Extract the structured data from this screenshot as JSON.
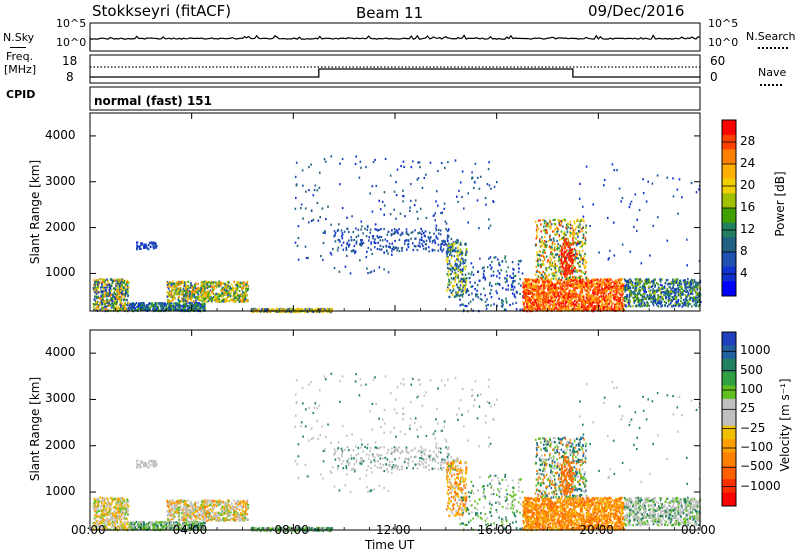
{
  "header": {
    "title": "Stokkseyri (fitACF)",
    "beam": "Beam 11",
    "date": "09/Dec/2016"
  },
  "top_panels": {
    "nsky_label": "N.Sky",
    "nsky_ticks": [
      "10^5",
      "10^0"
    ],
    "nsky_right_ticks": [
      "10^5",
      "10^0"
    ],
    "nsearch_label": "N.Search",
    "freq_label": "Freq.",
    "freq_unit": "[MHz]",
    "freq_ticks": [
      "18",
      "8"
    ],
    "nave_ticks": [
      "60",
      "0"
    ],
    "nave_label": "Nave",
    "cpid_label": "CPID",
    "cpid_value": "normal (fast) 151"
  },
  "chart_data": [
    {
      "type": "heatmap",
      "name": "power",
      "ylabel": "Slant Range [km]",
      "ylim": [
        180,
        4500
      ],
      "yticks": [
        1000,
        2000,
        3000,
        4000
      ],
      "colorbar_label": "Power [dB]",
      "colorbar_ticks": [
        "28",
        "24",
        "20",
        "16",
        "12",
        "8",
        "4"
      ],
      "colorbar_colors": [
        "#ff0000",
        "#ff4000",
        "#ff8000",
        "#ffb000",
        "#f0d000",
        "#a0c000",
        "#40a000",
        "#208060",
        "#206080",
        "#2050b0",
        "#1030d0",
        "#0000ff"
      ]
    },
    {
      "type": "heatmap",
      "name": "velocity",
      "ylabel": "Slant Range [km]",
      "ylim": [
        180,
        4500
      ],
      "yticks": [
        1000,
        2000,
        3000,
        4000
      ],
      "colorbar_label": "Velocity [m s⁻¹]",
      "colorbar_ticks": [
        "1000",
        "500",
        "100",
        "25",
        "−25",
        "−100",
        "−500",
        "−1000"
      ],
      "colorbar_colors": [
        "#2040c0",
        "#2060a0",
        "#208060",
        "#30a040",
        "#60c020",
        "#c0c0c0",
        "#c0c0c0",
        "#f0c000",
        "#ffa000",
        "#ff8000",
        "#ff6000",
        "#ff3000",
        "#ff0000"
      ]
    }
  ],
  "time_axis": {
    "ticks": [
      "00:00",
      "04:00",
      "08:00",
      "12:00",
      "16:00",
      "20:00",
      "00:00"
    ],
    "label": "Time UT"
  },
  "freq_steps": [
    {
      "start_h": 0,
      "end_h": 9.0,
      "level": "low"
    },
    {
      "start_h": 9.0,
      "end_h": 19.0,
      "level": "high"
    },
    {
      "start_h": 19.0,
      "end_h": 24,
      "level": "low"
    }
  ]
}
